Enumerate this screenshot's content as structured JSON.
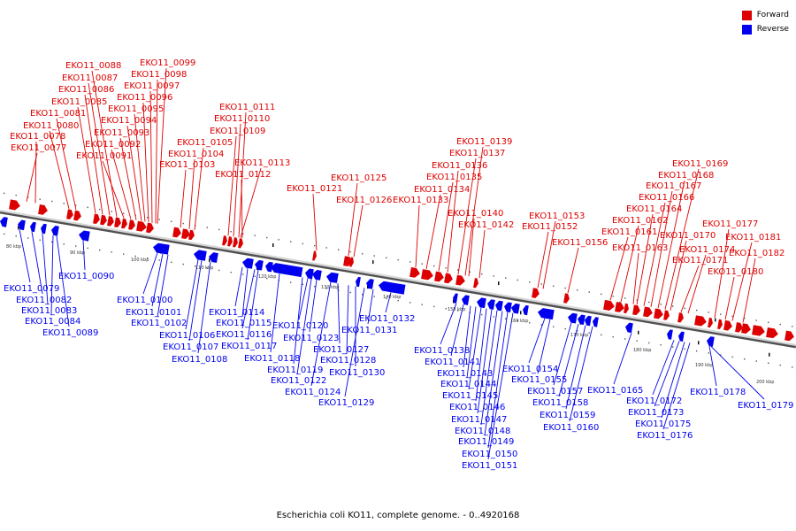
{
  "legend": {
    "forward": "Forward",
    "reverse": "Reverse"
  },
  "colors": {
    "forward": "#dd0000",
    "reverse": "#0000ee",
    "axis_light": "#dddddd",
    "axis_dark": "#555555"
  },
  "caption": "Escherichia coli KO11, complete genome. - 0..4920168",
  "ticks": [
    "80 kbp",
    "90 kbp",
    "100 kbp",
    "110 kbp",
    "120 kbp",
    "130 kbp",
    "140 kbp",
    "150 kbp",
    "160 kbp",
    "170 kbp",
    "180 kbp",
    "190 kbp",
    "200 kbp"
  ],
  "genes_forward": [
    "EKO11_0077",
    "EKO11_0078",
    "EKO11_0080",
    "EKO11_0081",
    "EKO11_0085",
    "EKO11_0086",
    "EKO11_0087",
    "EKO11_0088",
    "EKO11_0091",
    "EKO11_0092",
    "EKO11_0093",
    "EKO11_0094",
    "EKO11_0095",
    "EKO11_0096",
    "EKO11_0097",
    "EKO11_0098",
    "EKO11_0099",
    "EKO11_0103",
    "EKO11_0104",
    "EKO11_0105",
    "EKO11_0109",
    "EKO11_0110",
    "EKO11_0111",
    "EKO11_0112",
    "EKO11_0113",
    "EKO11_0121",
    "EKO11_0125",
    "EKO11_0126",
    "EKO11_0133",
    "EKO11_0134",
    "EKO11_0135",
    "EKO11_0136",
    "EKO11_0137",
    "EKO11_0139",
    "EKO11_0140",
    "EKO11_0142",
    "EKO11_0152",
    "EKO11_0153",
    "EKO11_0156",
    "EKO11_0161",
    "EKO11_0162",
    "EKO11_0163",
    "EKO11_0164",
    "EKO11_0166",
    "EKO11_0167",
    "EKO11_0168",
    "EKO11_0169",
    "EKO11_0170",
    "EKO11_0171",
    "EKO11_0174",
    "EKO11_0177",
    "EKO11_0180",
    "EKO11_0181",
    "EKO11_0182"
  ],
  "genes_reverse": [
    "EKO11_0079",
    "EKO11_0082",
    "EKO11_0083",
    "EKO11_0084",
    "EKO11_0089",
    "EKO11_0090",
    "EKO11_0100",
    "EKO11_0101",
    "EKO11_0102",
    "EKO11_0106",
    "EKO11_0107",
    "EKO11_0108",
    "EKO11_0114",
    "EKO11_0115",
    "EKO11_0116",
    "EKO11_0117",
    "EKO11_0118",
    "EKO11_0119",
    "EKO11_0120",
    "EKO11_0122",
    "EKO11_0123",
    "EKO11_0124",
    "EKO11_0127",
    "EKO11_0128",
    "EKO11_0129",
    "EKO11_0130",
    "EKO11_0131",
    "EKO11_0132",
    "EKO11_0138",
    "EKO11_0141",
    "EKO11_0143",
    "EKO11_0144",
    "EKO11_0145",
    "EKO11_0146",
    "EKO11_0147",
    "EKO11_0148",
    "EKO11_0149",
    "EKO11_0150",
    "EKO11_0151",
    "EKO11_0154",
    "EKO11_0155",
    "EKO11_0157",
    "EKO11_0158",
    "EKO11_0159",
    "EKO11_0160",
    "EKO11_0165",
    "EKO11_0172",
    "EKO11_0173",
    "EKO11_0175",
    "EKO11_0176",
    "EKO11_0178",
    "EKO11_0179"
  ]
}
